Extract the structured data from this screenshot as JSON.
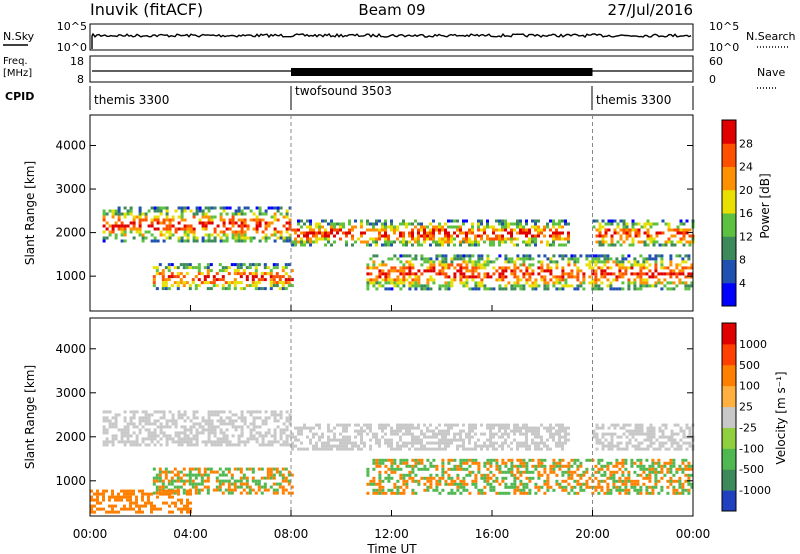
{
  "header": {
    "site": "Inuvik (fitACF)",
    "beam": "Beam 09",
    "date": "27/Jul/2016"
  },
  "strips": {
    "nsky_label": "N.Sky",
    "nsearch_label": "N.Search",
    "noise_left_ticks": [
      "10^5",
      "10^0"
    ],
    "noise_right_ticks": [
      "10^5",
      "10^0"
    ],
    "freq_label_line1": "Freq.",
    "freq_label_line2": "[MHz]",
    "freq_ticks": [
      "18",
      "8"
    ],
    "nave_label": "Nave",
    "nave_ticks": [
      "60",
      "0"
    ],
    "cpid_label": "CPID",
    "cpid_segments": [
      {
        "name": "themis 3300",
        "start_hour": 0,
        "end_hour": 8
      },
      {
        "name": "twofsound 3503",
        "start_hour": 8,
        "end_hour": 20
      },
      {
        "name": "themis 3300",
        "start_hour": 20,
        "end_hour": 24
      }
    ]
  },
  "chart_data": [
    {
      "type": "heatmap",
      "name": "power",
      "ylabel": "Slant Range [km]",
      "y_ticks": [
        "1000",
        "2000",
        "3000",
        "4000"
      ],
      "ylim": [
        200,
        4700
      ],
      "xlim": [
        0,
        24
      ],
      "colorbar": {
        "label": "Power [dB]",
        "ticks": [
          "4",
          "8",
          "12",
          "16",
          "20",
          "24",
          "28"
        ],
        "colors": [
          "#0000ff",
          "#2050b0",
          "#3c8a5a",
          "#5cc040",
          "#e8e000",
          "#ff9000",
          "#ff5000",
          "#e00000"
        ]
      },
      "echo_bands": [
        {
          "start_hour": 0.5,
          "end_hour": 8,
          "range_low_km": 1800,
          "range_high_km": 2600
        },
        {
          "start_hour": 2.5,
          "end_hour": 8,
          "range_low_km": 700,
          "range_high_km": 1300
        },
        {
          "start_hour": 8,
          "end_hour": 19,
          "range_low_km": 1700,
          "range_high_km": 2300
        },
        {
          "start_hour": 11,
          "end_hour": 24,
          "range_low_km": 700,
          "range_high_km": 1500
        },
        {
          "start_hour": 20,
          "end_hour": 24,
          "range_low_km": 1700,
          "range_high_km": 2300
        }
      ]
    },
    {
      "type": "heatmap",
      "name": "velocity",
      "ylabel": "Slant Range [km]",
      "y_ticks": [
        "1000",
        "2000",
        "3000",
        "4000"
      ],
      "ylim": [
        200,
        4700
      ],
      "xlim": [
        0,
        24
      ],
      "colorbar": {
        "label": "Velocity [m s⁻¹]",
        "ticks": [
          "1000",
          "500",
          "100",
          "25",
          "-25",
          "-100",
          "-500",
          "-1000"
        ],
        "colors": [
          "#2040c0",
          "#3c8a5a",
          "#50b850",
          "#90d040",
          "#c8c8c8",
          "#ffb040",
          "#ff8000",
          "#ff4000",
          "#e00000"
        ]
      },
      "echo_bands": [
        {
          "start_hour": 0.5,
          "end_hour": 8,
          "range_low_km": 1800,
          "range_high_km": 2600
        },
        {
          "start_hour": 2.5,
          "end_hour": 8,
          "range_low_km": 700,
          "range_high_km": 1300
        },
        {
          "start_hour": 0,
          "end_hour": 4,
          "range_low_km": 300,
          "range_high_km": 800
        },
        {
          "start_hour": 8,
          "end_hour": 19,
          "range_low_km": 1700,
          "range_high_km": 2300
        },
        {
          "start_hour": 11,
          "end_hour": 24,
          "range_low_km": 700,
          "range_high_km": 1500
        },
        {
          "start_hour": 20,
          "end_hour": 24,
          "range_low_km": 1700,
          "range_high_km": 2300
        }
      ]
    }
  ],
  "x_axis": {
    "ticks": [
      "00:00",
      "04:00",
      "08:00",
      "12:00",
      "16:00",
      "20:00",
      "00:00"
    ],
    "label": "Time UT"
  }
}
